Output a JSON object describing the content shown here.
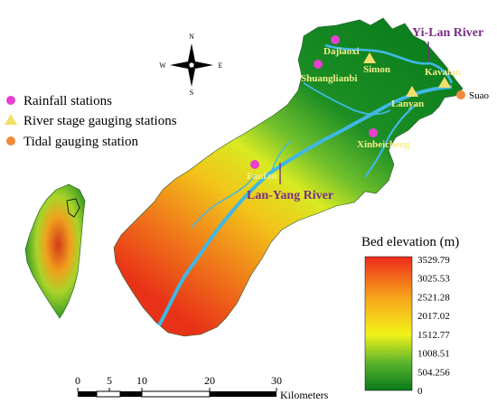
{
  "compass": {
    "n": "N",
    "s": "S",
    "e": "E",
    "w": "W"
  },
  "stations": {
    "rainfall": [
      "Dajiaoxi",
      "Shuanglianbi",
      "Xinbeicheng",
      "Fanfan"
    ],
    "river_stage": [
      "Simon",
      "Kavalan",
      "Lanyan"
    ],
    "tidal": [
      "Suao"
    ]
  },
  "rivers": {
    "yilan": "Yi-Lan River",
    "lanyang": "Lan-Yang River"
  },
  "legend": {
    "rainfall": "Rainfall stations",
    "river_stage": "River stage gauging stations",
    "tidal": "Tidal gauging station"
  },
  "elevation": {
    "title": "Bed elevation (m)",
    "ticks": [
      "3529.79",
      "3025.53",
      "2521.28",
      "2017.02",
      "1512.77",
      "1008.51",
      "504.256",
      "0"
    ]
  },
  "scale": {
    "ticks": [
      "0",
      "5",
      "10",
      "20",
      "30"
    ],
    "unit": "Kilometers"
  },
  "colors": {
    "rainfall": "#e83fd0",
    "river_stage": "#f2de6a",
    "tidal": "#ef8a3a",
    "river_label": "#7a2f86",
    "station_label": "#f5ee8a",
    "river": "#3fb8e4"
  }
}
